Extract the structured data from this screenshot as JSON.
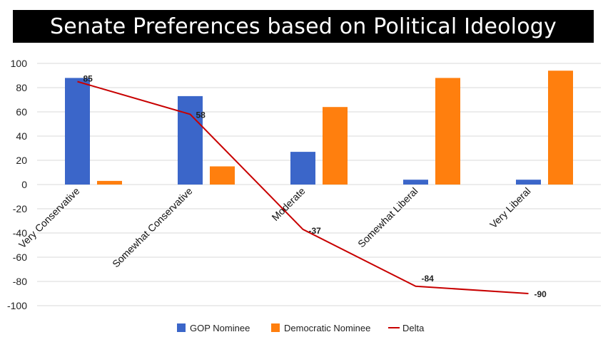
{
  "title": "Senate Preferences based on Political Ideology",
  "colors": {
    "gop": "#3B66C9",
    "dem": "#FF7F0E",
    "delta": "#C80000",
    "grid": "#D9D9D9"
  },
  "chart_data": {
    "type": "bar",
    "title": "Senate Preferences based on Political Ideology",
    "categories": [
      "Very Conservative",
      "Somewhat Conservative",
      "Moderate",
      "Somewhat Liberal",
      "Very Liberal"
    ],
    "series": [
      {
        "name": "GOP Nominee",
        "type": "bar",
        "values": [
          88,
          73,
          27,
          4,
          4
        ]
      },
      {
        "name": "Democratic Nominee",
        "type": "bar",
        "values": [
          3,
          15,
          64,
          88,
          94
        ]
      },
      {
        "name": "Delta",
        "type": "line",
        "values": [
          85,
          58,
          -37,
          -84,
          -90
        ],
        "labels": [
          "85",
          "58",
          "-37",
          "-84",
          "-90"
        ]
      }
    ],
    "ylim": [
      -100,
      100
    ],
    "yticks": [
      "100",
      "80",
      "60",
      "40",
      "20",
      "0",
      "-20",
      "-40",
      "-60",
      "-80",
      "-100"
    ],
    "xlabel": "",
    "ylabel": "",
    "grid": true,
    "legend": "bottom"
  }
}
